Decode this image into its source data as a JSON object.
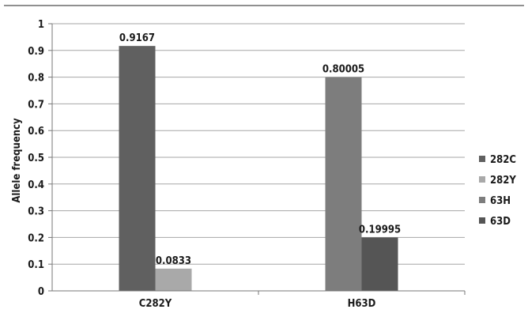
{
  "chart_data": {
    "type": "bar",
    "title": "",
    "xlabel": "",
    "ylabel": "Allele frequency",
    "ylim": [
      0,
      1
    ],
    "yticks": [
      0,
      0.1,
      0.2,
      0.3,
      0.4,
      0.5,
      0.6,
      0.7,
      0.8,
      0.9,
      1
    ],
    "ytick_labels": [
      "0",
      "0.1",
      "0.2",
      "0.3",
      "0.4",
      "0.5",
      "0.6",
      "0.7",
      "0.8",
      "0.9",
      "1"
    ],
    "grid": true,
    "legend_position": "right",
    "categories": [
      "C282Y",
      "H63D"
    ],
    "series": [
      {
        "name": "282C",
        "color": "#606060",
        "values": [
          0.9167,
          null
        ],
        "labels": [
          "0.9167",
          ""
        ]
      },
      {
        "name": "282Y",
        "color": "#a9a9a9",
        "values": [
          0.0833,
          null
        ],
        "labels": [
          "0.0833",
          ""
        ]
      },
      {
        "name": "63H",
        "color": "#7d7d7d",
        "values": [
          null,
          0.80005
        ],
        "labels": [
          "",
          "0.80005"
        ]
      },
      {
        "name": "63D",
        "color": "#555555",
        "values": [
          null,
          0.19995
        ],
        "labels": [
          "",
          "0.19995"
        ]
      }
    ]
  }
}
